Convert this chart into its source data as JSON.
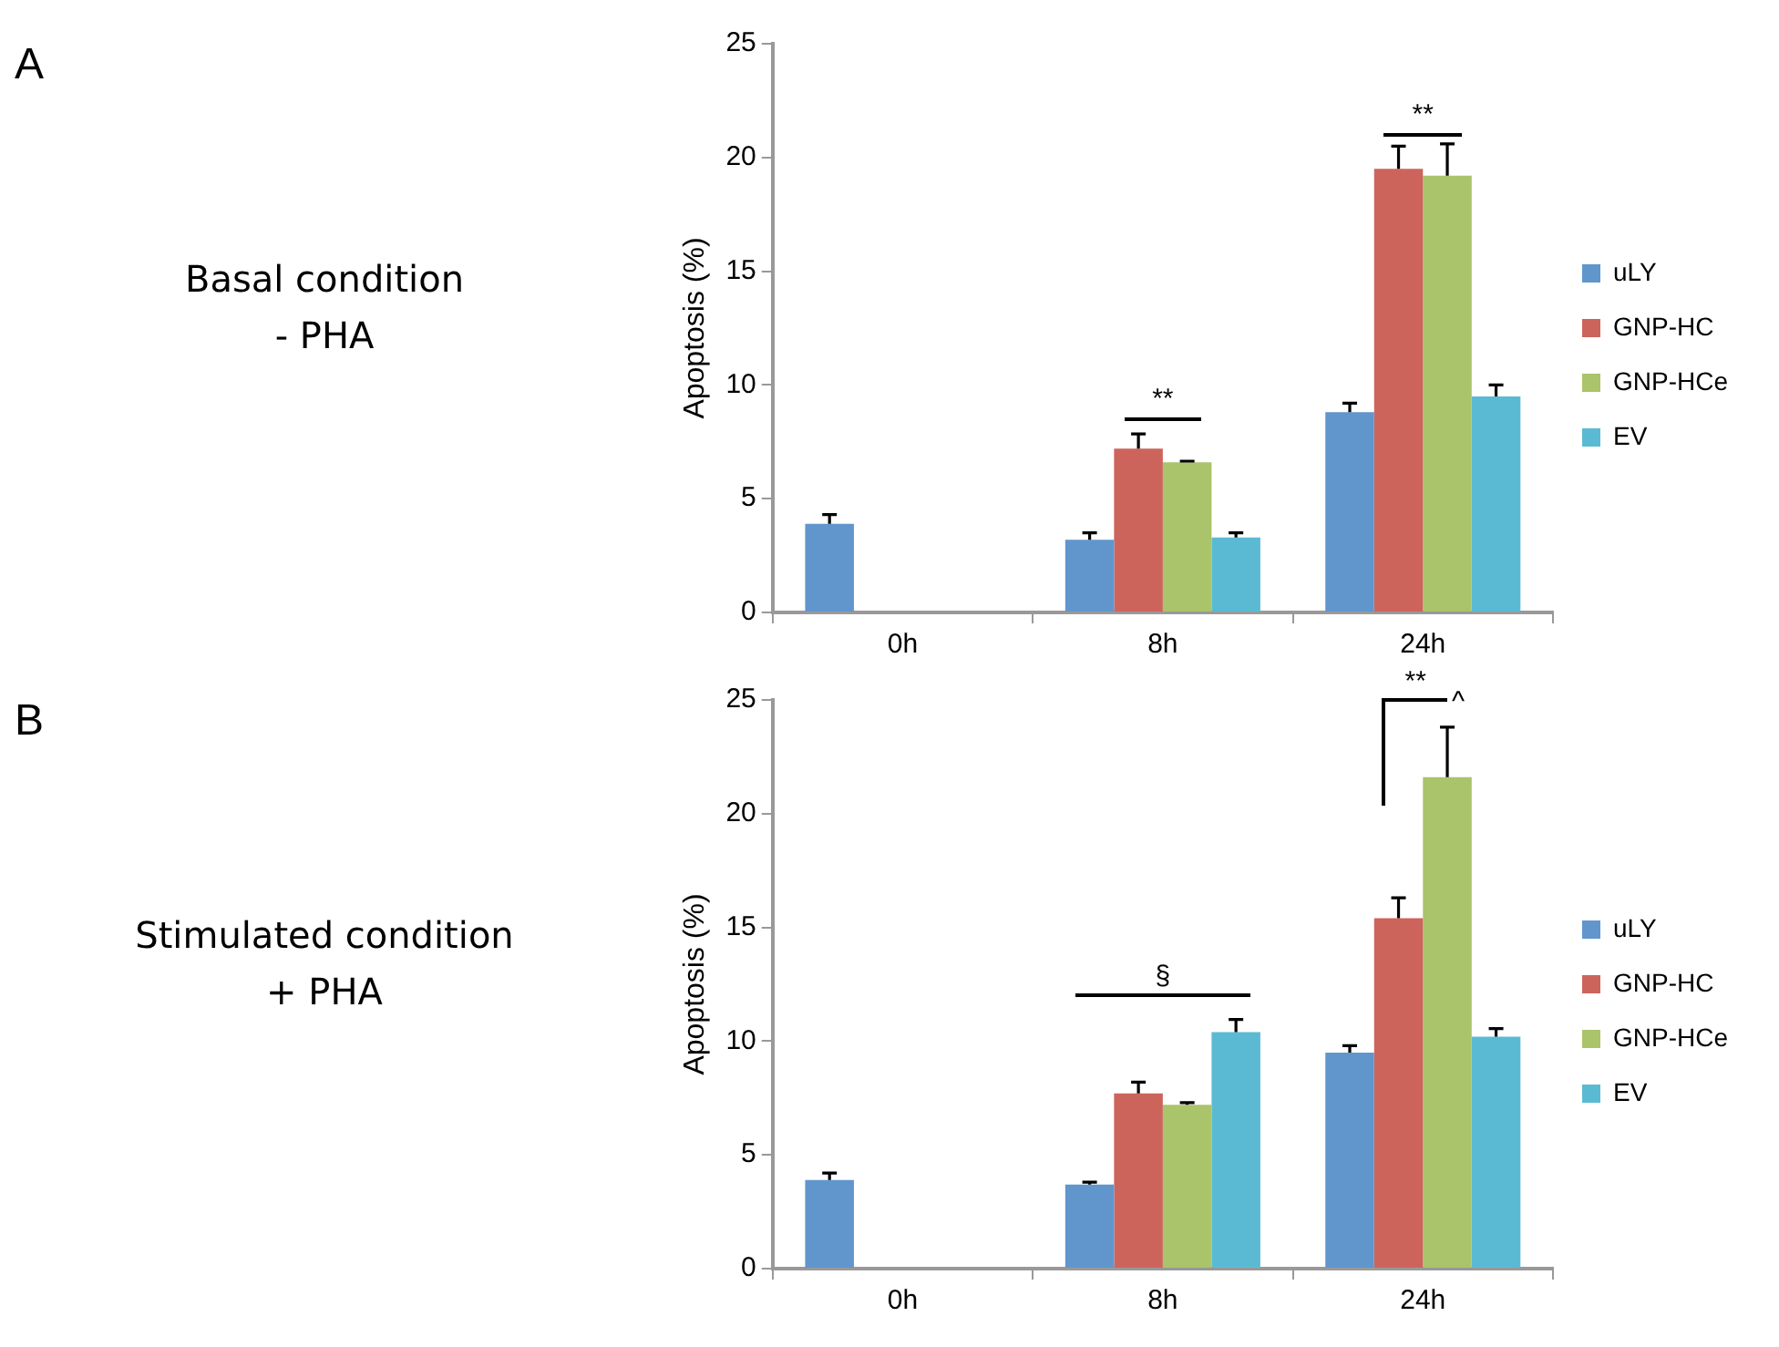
{
  "chart_data": [
    {
      "type": "bar",
      "annotations": [
        "A",
        "Basal condition",
        "- PHA",
        "**",
        "**"
      ],
      "ylabel": "Apoptosis (%)",
      "categories": [
        "0h",
        "8h",
        "24h"
      ],
      "series": [
        {
          "name": "uLY",
          "color": "#6096cc",
          "values": [
            3.9,
            3.2,
            8.8
          ],
          "errors": [
            [
              3.9,
              4.3
            ],
            [
              3.2,
              3.5
            ],
            [
              8.8,
              9.2
            ]
          ]
        },
        {
          "name": "GNP-HC",
          "color": "#cd645c",
          "values": [
            null,
            7.2,
            19.5
          ],
          "errors": [
            null,
            [
              7.2,
              7.85
            ],
            [
              19.5,
              20.5
            ]
          ]
        },
        {
          "name": "GNP-HCe",
          "color": "#a9c46a",
          "values": [
            null,
            6.6,
            19.2
          ],
          "errors": [
            null,
            [
              6.6,
              6.65
            ],
            [
              19.2,
              20.6
            ]
          ]
        },
        {
          "name": "EV",
          "color": "#5bbad3",
          "values": [
            null,
            3.3,
            9.5
          ],
          "errors": [
            null,
            [
              3.3,
              3.5
            ],
            [
              9.5,
              10
            ]
          ]
        }
      ],
      "ylim": [
        0,
        25
      ],
      "yticks": [
        0,
        5,
        10,
        15,
        20,
        25
      ],
      "legend": "right"
    },
    {
      "type": "bar",
      "annotations": [
        "B",
        "Stimulated condition",
        "+ PHA",
        "§",
        "**",
        "^"
      ],
      "ylabel": "Apoptosis (%)",
      "categories": [
        "0h",
        "8h",
        "24h"
      ],
      "series": [
        {
          "name": "uLY",
          "color": "#6096cc",
          "values": [
            3.9,
            3.7,
            9.5
          ],
          "errors": [
            [
              3.9,
              4.2
            ],
            [
              3.7,
              3.8
            ],
            [
              9.5,
              9.8
            ]
          ]
        },
        {
          "name": "GNP-HC",
          "color": "#cd645c",
          "values": [
            null,
            7.7,
            15.4
          ],
          "errors": [
            null,
            [
              7.7,
              8.2
            ],
            [
              15.4,
              16.3
            ]
          ]
        },
        {
          "name": "GNP-HCe",
          "color": "#a9c46a",
          "values": [
            null,
            7.2,
            21.6
          ],
          "errors": [
            null,
            [
              7.2,
              7.3
            ],
            [
              21.6,
              23.8
            ]
          ]
        },
        {
          "name": "EV",
          "color": "#5bbad3",
          "values": [
            null,
            10.4,
            10.2
          ],
          "errors": [
            null,
            [
              10.4,
              10.95
            ],
            [
              10.2,
              10.55
            ]
          ]
        }
      ],
      "ylim": [
        0,
        25
      ],
      "yticks": [
        0,
        5,
        10,
        15,
        20,
        25
      ],
      "legend": "right"
    }
  ]
}
